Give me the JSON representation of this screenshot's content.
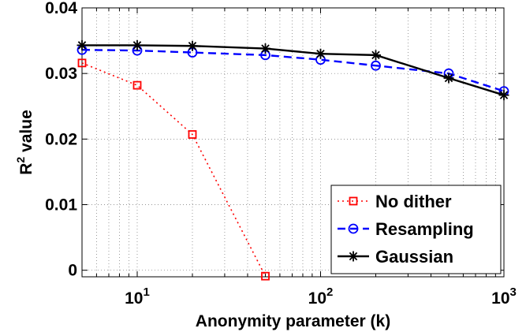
{
  "chart_data": {
    "type": "line",
    "xscale": "log",
    "xlim": [
      5,
      1000
    ],
    "ylim": [
      -0.001,
      0.04
    ],
    "grid": true,
    "legend_position": "bottom-right",
    "xlabel": "Anonymity parameter (k)",
    "ylabel": "R² value",
    "ylabel_main": "R",
    "ylabel_sup": "2",
    "ylabel_rest": " value",
    "x_ticks": [
      {
        "value": 10,
        "base": "10",
        "exp": "1"
      },
      {
        "value": 100,
        "base": "10",
        "exp": "2"
      },
      {
        "value": 1000,
        "base": "10",
        "exp": "3"
      }
    ],
    "y_ticks": [
      {
        "value": 0,
        "label": "0"
      },
      {
        "value": 0.01,
        "label": "0.01"
      },
      {
        "value": 0.02,
        "label": "0.02"
      },
      {
        "value": 0.03,
        "label": "0.03"
      },
      {
        "value": 0.04,
        "label": "0.04"
      }
    ],
    "series": [
      {
        "name": "No dither",
        "color": "#ff0000",
        "line": "dotted",
        "marker": "square",
        "x": [
          5,
          10,
          20,
          50
        ],
        "y": [
          0.0316,
          0.0282,
          0.0207,
          -0.0009
        ]
      },
      {
        "name": "Resampling",
        "color": "#0000ff",
        "line": "dashed",
        "marker": "circle",
        "x": [
          5,
          10,
          20,
          50,
          100,
          200,
          500,
          1000
        ],
        "y": [
          0.0336,
          0.0335,
          0.0332,
          0.0328,
          0.0321,
          0.0312,
          0.03,
          0.0273
        ]
      },
      {
        "name": "Gaussian",
        "color": "#000000",
        "line": "solid",
        "marker": "asterisk",
        "x": [
          5,
          10,
          20,
          50,
          100,
          200,
          500,
          1000
        ],
        "y": [
          0.0343,
          0.0343,
          0.0342,
          0.0338,
          0.033,
          0.0328,
          0.0293,
          0.0267
        ]
      }
    ]
  }
}
